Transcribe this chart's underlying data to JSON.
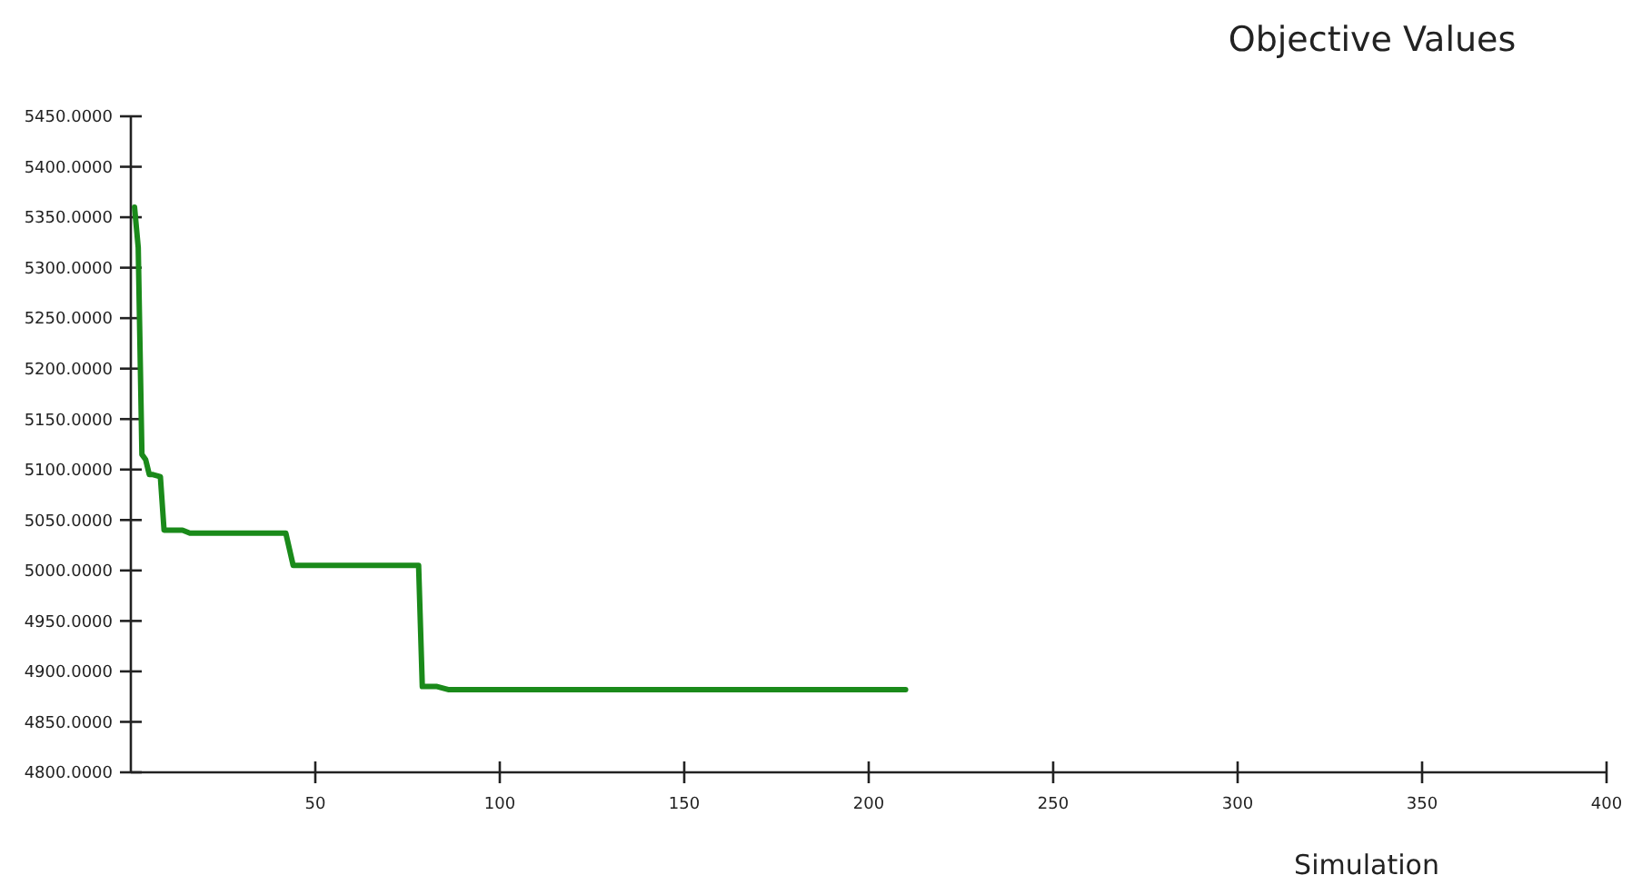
{
  "chart_data": {
    "type": "line",
    "title": "Objective Values",
    "xlabel": "Simulation",
    "x": [
      1,
      2,
      3,
      4,
      5,
      6,
      8,
      9,
      14,
      16,
      42,
      44,
      78,
      79,
      83,
      86,
      210
    ],
    "series": [
      {
        "color": "#1a8a1a",
        "values": [
          5360,
          5320,
          5115,
          5110,
          5095,
          5095,
          5093,
          5040,
          5040,
          5037,
          5037,
          5005,
          5005,
          4885,
          4885,
          4882,
          4882
        ]
      }
    ],
    "xlim": [
      0,
      400
    ],
    "xticks": [
      50,
      100,
      150,
      200,
      250,
      300,
      350,
      400
    ],
    "ylim": [
      4800,
      5450
    ],
    "yticks": [
      {
        "value": 4800,
        "label": "4800.0000"
      },
      {
        "value": 4850,
        "label": "4850.0000"
      },
      {
        "value": 4900,
        "label": "4900.0000"
      },
      {
        "value": 4950,
        "label": "4950.0000"
      },
      {
        "value": 5000,
        "label": "5000.0000"
      },
      {
        "value": 5050,
        "label": "5050.0000"
      },
      {
        "value": 5100,
        "label": "5100.0000"
      },
      {
        "value": 5150,
        "label": "5150.0000"
      },
      {
        "value": 5200,
        "label": "5200.0000"
      },
      {
        "value": 5250,
        "label": "5250.0000"
      },
      {
        "value": 5300,
        "label": "5300.0000"
      },
      {
        "value": 5350,
        "label": "5350.0000"
      },
      {
        "value": 5400,
        "label": "5400.0000"
      },
      {
        "value": 5450,
        "label": "5450.0000"
      }
    ],
    "grid": false
  }
}
